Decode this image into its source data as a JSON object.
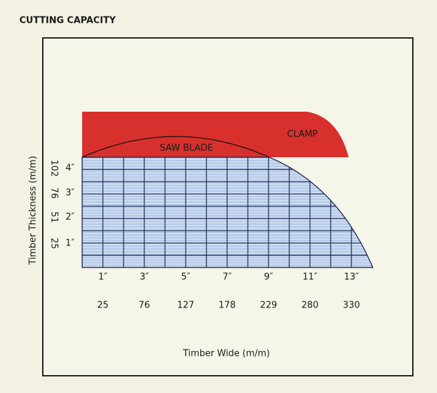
{
  "title": "CUTTING CAPACITY",
  "clamp_label": "CLAMP",
  "blade_label": "SAW BLADE",
  "y_axis": {
    "label": "Timber Thickness (m/m)",
    "inch_ticks": [
      "4″",
      "3″",
      "2″",
      "1″"
    ],
    "mm_ticks": [
      "102",
      "76",
      "51",
      "25"
    ]
  },
  "x_axis": {
    "label": "Timber Wide (m/m)",
    "inch_ticks": [
      "1″",
      "3″",
      "5″",
      "7″",
      "9″",
      "11″",
      "13″"
    ],
    "mm_ticks": [
      "25",
      "76",
      "127",
      "178",
      "229",
      "280",
      "330"
    ]
  }
}
